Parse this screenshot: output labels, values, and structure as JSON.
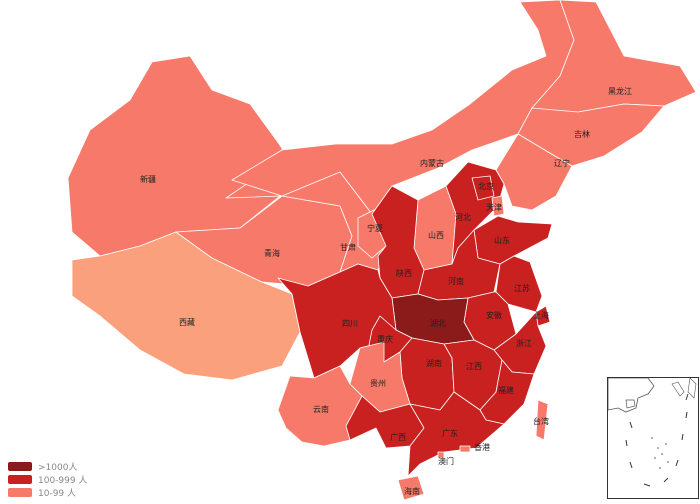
{
  "colors": {
    "tier1": "#8b1a1a",
    "tier2": "#c9211f",
    "tier3": "#f7796a",
    "tier4": "#fba07d",
    "border": "#ffffff"
  },
  "legend": [
    {
      "label": ">1000人",
      "tier": "tier1"
    },
    {
      "label": "100-999 人",
      "tier": "tier2"
    },
    {
      "label": "10-99 人",
      "tier": "tier3"
    }
  ],
  "provinces": [
    {
      "id": "xinjiang",
      "label": "新疆",
      "tier": "tier3"
    },
    {
      "id": "xizang",
      "label": "西藏",
      "tier": "tier4"
    },
    {
      "id": "qinghai",
      "label": "青海",
      "tier": "tier3"
    },
    {
      "id": "gansu",
      "label": "甘肃",
      "tier": "tier3"
    },
    {
      "id": "neimenggu",
      "label": "内蒙古",
      "tier": "tier3"
    },
    {
      "id": "heilongjiang",
      "label": "黑龙江",
      "tier": "tier3"
    },
    {
      "id": "jilin",
      "label": "吉林",
      "tier": "tier3"
    },
    {
      "id": "liaoning",
      "label": "辽宁",
      "tier": "tier3"
    },
    {
      "id": "ningxia",
      "label": "宁夏",
      "tier": "tier3"
    },
    {
      "id": "shanxi",
      "label": "山西",
      "tier": "tier3"
    },
    {
      "id": "shaanxi",
      "label": "陕西",
      "tier": "tier2"
    },
    {
      "id": "hebei",
      "label": "河北",
      "tier": "tier2"
    },
    {
      "id": "beijing",
      "label": "北京",
      "tier": "tier2"
    },
    {
      "id": "tianjin",
      "label": "天津",
      "tier": "tier3"
    },
    {
      "id": "shandong",
      "label": "山东",
      "tier": "tier2"
    },
    {
      "id": "henan",
      "label": "河南",
      "tier": "tier2"
    },
    {
      "id": "jiangsu",
      "label": "江苏",
      "tier": "tier2"
    },
    {
      "id": "anhui",
      "label": "安徽",
      "tier": "tier2"
    },
    {
      "id": "shanghai",
      "label": "上海",
      "tier": "tier2"
    },
    {
      "id": "hubei",
      "label": "湖北",
      "tier": "tier1"
    },
    {
      "id": "sichuan",
      "label": "四川",
      "tier": "tier2"
    },
    {
      "id": "chongqing",
      "label": "重庆",
      "tier": "tier2"
    },
    {
      "id": "zhejiang",
      "label": "浙江",
      "tier": "tier2"
    },
    {
      "id": "hunan",
      "label": "湖南",
      "tier": "tier2"
    },
    {
      "id": "jiangxi",
      "label": "江西",
      "tier": "tier2"
    },
    {
      "id": "guizhou",
      "label": "贵州",
      "tier": "tier3"
    },
    {
      "id": "fujian",
      "label": "福建",
      "tier": "tier2"
    },
    {
      "id": "yunnan",
      "label": "云南",
      "tier": "tier3"
    },
    {
      "id": "guangxi",
      "label": "广西",
      "tier": "tier2"
    },
    {
      "id": "guangdong",
      "label": "广东",
      "tier": "tier2"
    },
    {
      "id": "taiwan",
      "label": "台湾",
      "tier": "tier3"
    },
    {
      "id": "hongkong",
      "label": "香港",
      "tier": "tier3"
    },
    {
      "id": "macau",
      "label": "澳门",
      "tier": "tier3"
    },
    {
      "id": "hainan",
      "label": "海南",
      "tier": "tier3"
    }
  ]
}
